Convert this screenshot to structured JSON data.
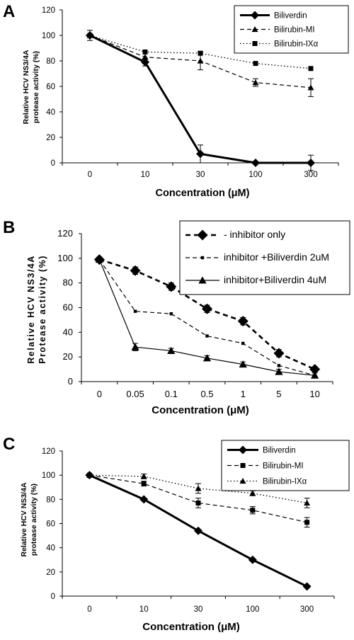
{
  "chart_data": [
    {
      "panel": "A",
      "type": "line",
      "xlabel": "Concentration (μM)",
      "ylabel": [
        "Relative HCV NS3/4A",
        "protease activity (%)"
      ],
      "categories": [
        "0",
        "10",
        "30",
        "100",
        "300"
      ],
      "ylim": [
        0,
        120
      ],
      "yticks": [
        0,
        20,
        40,
        60,
        80,
        100,
        120
      ],
      "legend": "top-right",
      "series": [
        {
          "name": "Biliverdin",
          "values": [
            100,
            79,
            7,
            0,
            0
          ],
          "errors": [
            4,
            3,
            7,
            1,
            6
          ],
          "marker": "diamond",
          "line": "solid-thick"
        },
        {
          "name": "Bilirubin-MI",
          "values": [
            100,
            83,
            80,
            63,
            59
          ],
          "errors": [
            0,
            0,
            7,
            3,
            7
          ],
          "marker": "triangle",
          "line": "dashed"
        },
        {
          "name": "Bilirubin-IXα",
          "values": [
            100,
            87,
            86,
            78,
            74
          ],
          "errors": [
            0,
            0,
            0,
            0,
            0
          ],
          "marker": "square",
          "line": "dotted"
        }
      ]
    },
    {
      "panel": "B",
      "type": "line",
      "xlabel": "Concentration (μM)",
      "ylabel": [
        "Relative HCV NS3/4A",
        "Protease activity (%)"
      ],
      "categories": [
        "0",
        "0.05",
        "0.1",
        "0.5",
        "1",
        "5",
        "10"
      ],
      "ylim": [
        0,
        120
      ],
      "yticks": [
        0,
        20,
        40,
        60,
        80,
        100,
        120
      ],
      "legend": "top-right",
      "series": [
        {
          "name": "- inhibitor only",
          "values": [
            99,
            90,
            77,
            59,
            49,
            23,
            10
          ],
          "errors": [
            2,
            3,
            3,
            3,
            3,
            3,
            2
          ],
          "marker": "diamond",
          "line": "dashed-thick"
        },
        {
          "name": "inhibitor +Biliverdin 2uM",
          "values": [
            99,
            57,
            55,
            37,
            31,
            13,
            5
          ],
          "errors": [
            0,
            0,
            0,
            0,
            0,
            0,
            0
          ],
          "marker": "small-square",
          "line": "dashed"
        },
        {
          "name": "inhibitor+Biliverdin 4uM",
          "values": [
            99,
            28,
            25,
            19,
            14,
            8,
            5
          ],
          "errors": [
            2,
            3,
            2,
            2,
            2,
            2,
            2
          ],
          "marker": "triangle",
          "line": "solid"
        }
      ]
    },
    {
      "panel": "C",
      "type": "line",
      "xlabel": "Concentration (μM)",
      "ylabel": [
        "Relative HCV NS3/4A",
        "protease activity (%)"
      ],
      "categories": [
        "0",
        "10",
        "30",
        "100",
        "300"
      ],
      "ylim": [
        0,
        120
      ],
      "yticks": [
        0,
        20,
        40,
        60,
        80,
        100,
        120
      ],
      "legend": "top-right",
      "series": [
        {
          "name": "Biliverdin",
          "values": [
            100,
            80,
            54,
            30,
            8
          ],
          "errors": [
            1,
            1,
            1,
            1,
            1
          ],
          "marker": "diamond",
          "line": "solid-thick"
        },
        {
          "name": "Bilirubin-MI",
          "values": [
            100,
            93,
            77,
            71,
            61
          ],
          "errors": [
            1,
            2,
            4,
            3,
            4
          ],
          "marker": "square",
          "line": "dashed"
        },
        {
          "name": "Bilirubin-IXα",
          "values": [
            100,
            99,
            89,
            85,
            77
          ],
          "errors": [
            1,
            2,
            4,
            2,
            4
          ],
          "marker": "triangle",
          "line": "dotted"
        }
      ]
    }
  ],
  "panel_labels": {
    "a": "A",
    "b": "B",
    "c": "C"
  },
  "style": {
    "ink": "#000000",
    "background": "#ffffff"
  }
}
